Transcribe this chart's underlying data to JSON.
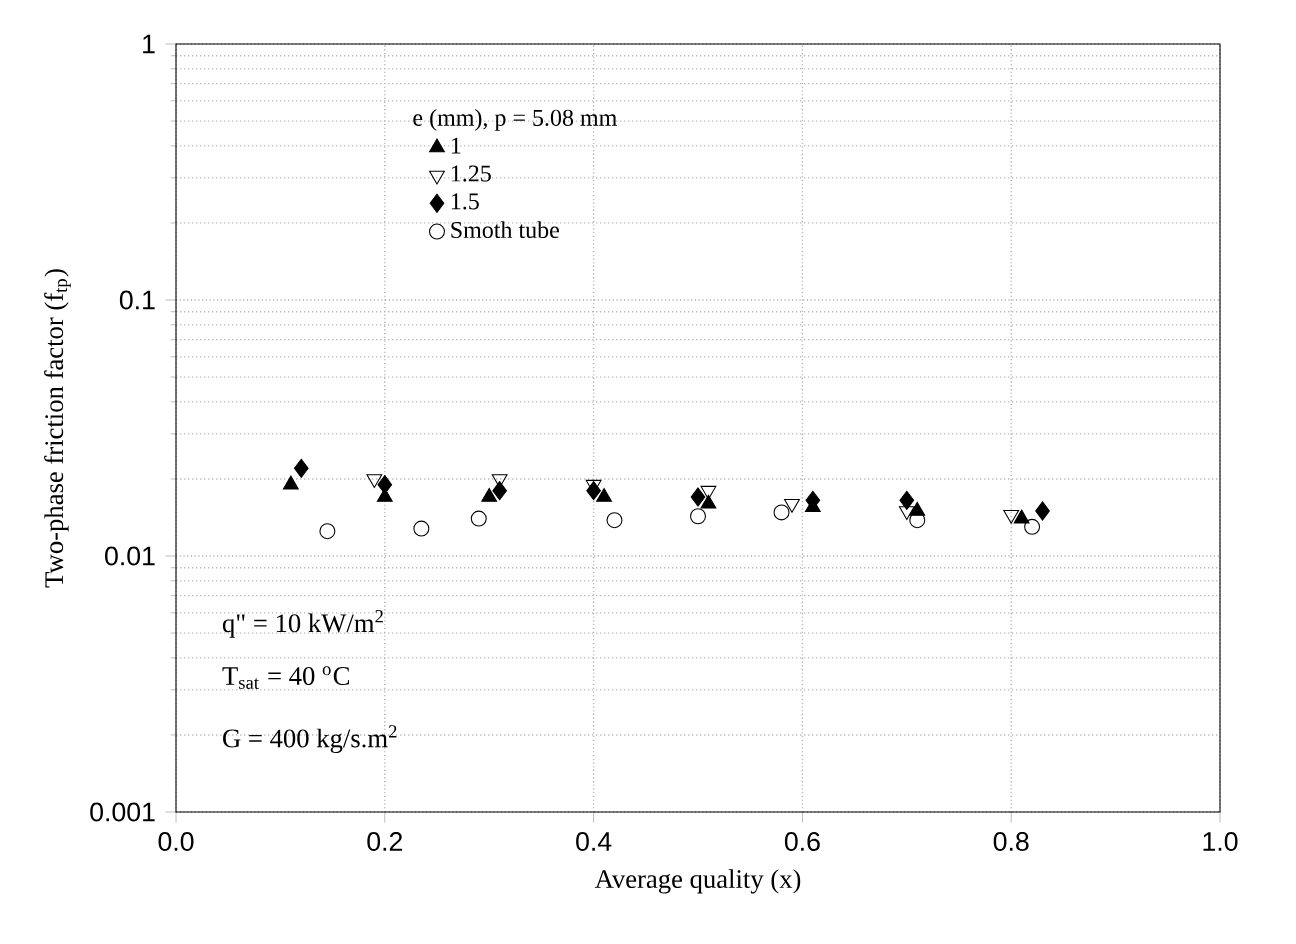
{
  "chart_data": {
    "type": "scatter",
    "xlabel": "Average quality (x)",
    "ylabel": "Two-phase friction factor (f$_{tp}$)",
    "legend_title": "e (mm),   p = 5.08 mm",
    "xlim": [
      0,
      1
    ],
    "ylim": [
      0.001,
      1
    ],
    "log": "y",
    "grid": true,
    "legend": "top left",
    "xticks": [
      {
        "value": 0,
        "label": "0.0"
      },
      {
        "value": 0.2,
        "label": "0.2"
      },
      {
        "value": 0.4,
        "label": "0.4"
      },
      {
        "value": 0.6,
        "label": "0.6"
      },
      {
        "value": 0.8,
        "label": "0.8"
      },
      {
        "value": 1,
        "label": "1.0"
      }
    ],
    "yticks": [
      {
        "value": 0.001,
        "label": "0.001"
      },
      {
        "value": 0.01,
        "label": "0.01"
      },
      {
        "value": 0.1,
        "label": "0.1"
      },
      {
        "value": 1,
        "label": "1"
      }
    ],
    "annotations": [
      "q\" = 10 kW/m$^{2}$",
      "T$_{sat}$ = 40 $^{o}$C",
      "G = 400 kg/s.m$^{2}$"
    ],
    "series": [
      {
        "name": "1",
        "color": "#000000",
        "marker": "triangle",
        "x": [
          0.11,
          0.2,
          0.3,
          0.41,
          0.51,
          0.61,
          0.71,
          0.81
        ],
        "values": [
          0.019,
          0.017,
          0.017,
          0.017,
          0.016,
          0.0155,
          0.015,
          0.014
        ]
      },
      {
        "name": "1.25",
        "color": "#000000",
        "marker": "triangle-down",
        "x": [
          0.19,
          0.31,
          0.4,
          0.51,
          0.59,
          0.7,
          0.8
        ],
        "values": [
          0.02,
          0.02,
          0.019,
          0.018,
          0.016,
          0.015,
          0.0145
        ]
      },
      {
        "name": "1.5",
        "color": "#000000",
        "marker": "diamond",
        "x": [
          0.12,
          0.2,
          0.31,
          0.4,
          0.5,
          0.61,
          0.7,
          0.83
        ],
        "values": [
          0.022,
          0.019,
          0.018,
          0.018,
          0.017,
          0.0165,
          0.0165,
          0.015
        ]
      },
      {
        "name": "Smoth tube",
        "color": "#000000",
        "marker": "circle",
        "x": [
          0.145,
          0.235,
          0.29,
          0.42,
          0.5,
          0.58,
          0.71,
          0.82
        ],
        "values": [
          0.0125,
          0.0128,
          0.014,
          0.0138,
          0.0143,
          0.0148,
          0.0138,
          0.013
        ]
      }
    ]
  }
}
